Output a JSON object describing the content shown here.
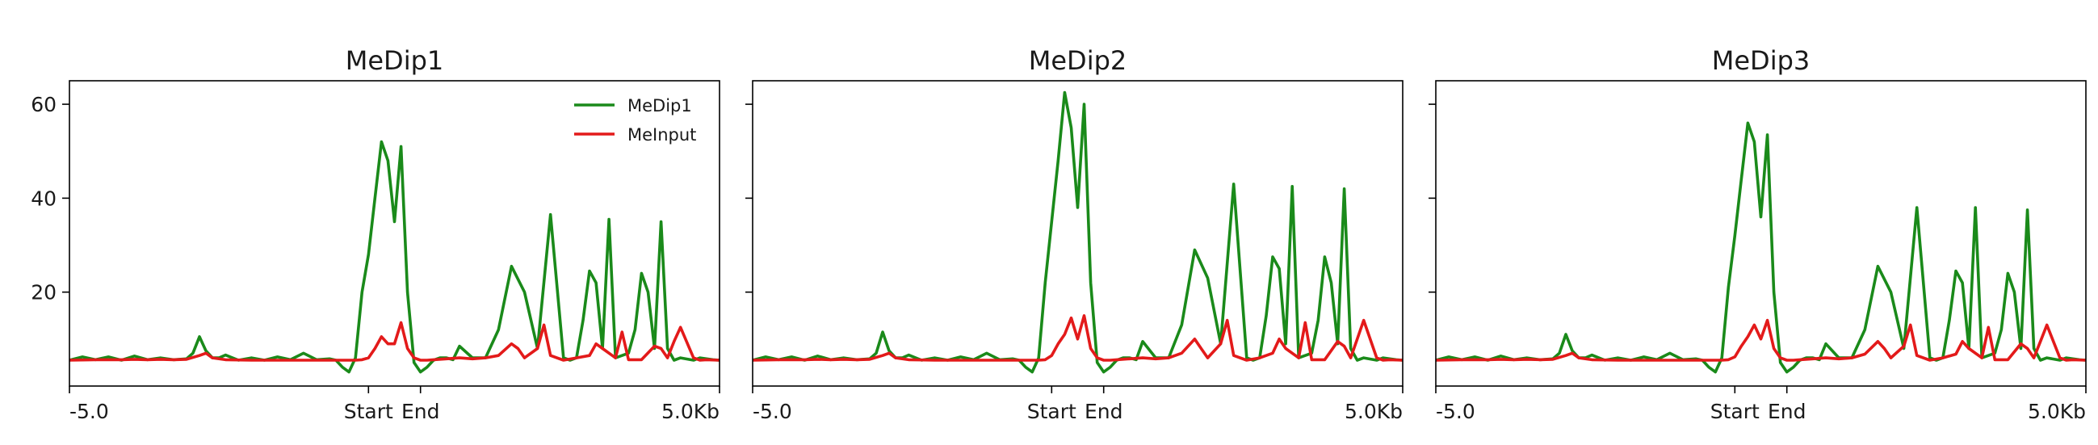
{
  "chart_data": [
    {
      "type": "line",
      "title": "MeDip1",
      "xlim": [
        0,
        100
      ],
      "ylim": [
        0,
        65
      ],
      "x_ticks": [
        {
          "x": 0,
          "label": "-5.0"
        },
        {
          "x": 46,
          "label": "Start"
        },
        {
          "x": 54,
          "label": "End"
        },
        {
          "x": 100,
          "label": "5.0Kb"
        }
      ],
      "y_ticks": [
        {
          "y": 20,
          "label": "20"
        },
        {
          "y": 40,
          "label": "40"
        },
        {
          "y": 60,
          "label": "60"
        }
      ],
      "show_y_tick_labels": true,
      "legend": {
        "position": "top-right",
        "entries": [
          "MeDip1",
          "MeInput"
        ]
      },
      "series": [
        {
          "name": "MeDip1",
          "color": "#1a8a1a",
          "x": [
            0,
            2,
            4,
            6,
            8,
            10,
            12,
            14,
            16,
            18,
            19,
            20,
            21,
            22,
            23,
            24,
            26,
            28,
            30,
            32,
            34,
            36,
            38,
            40,
            41,
            42,
            43,
            44,
            45,
            46,
            47,
            48,
            49,
            50,
            51,
            52,
            53,
            54,
            55,
            56,
            57,
            58,
            59,
            60,
            62,
            64,
            66,
            68,
            70,
            72,
            74,
            76,
            77,
            78,
            79,
            80,
            81,
            82,
            83,
            84,
            86,
            87,
            88,
            89,
            90,
            91,
            92,
            93,
            94,
            96,
            97,
            98,
            99,
            100
          ],
          "y": [
            5.5,
            6.2,
            5.6,
            6.2,
            5.5,
            6.4,
            5.6,
            6.0,
            5.6,
            5.8,
            7.0,
            10.5,
            7.5,
            6.0,
            6.0,
            6.6,
            5.5,
            6.0,
            5.5,
            6.2,
            5.6,
            7.0,
            5.6,
            5.8,
            5.5,
            4.0,
            3.0,
            6.0,
            20.0,
            28.0,
            40.0,
            52.0,
            48.0,
            35.0,
            51.0,
            20.0,
            5.0,
            3.0,
            4.0,
            5.5,
            6.0,
            6.0,
            5.6,
            8.5,
            6.0,
            6.0,
            12.0,
            25.5,
            20.0,
            8.0,
            36.5,
            6.0,
            5.5,
            6.0,
            14.0,
            24.5,
            22.0,
            8.0,
            35.5,
            6.0,
            7.0,
            12.0,
            24.0,
            20.0,
            8.0,
            35.0,
            8.0,
            5.5,
            6.0,
            5.5,
            6.0,
            5.8,
            5.6,
            5.5
          ]
        },
        {
          "name": "MeInput",
          "color": "#e31a1a",
          "x": [
            0,
            4,
            8,
            10,
            12,
            14,
            16,
            18,
            20,
            21,
            22,
            24,
            28,
            32,
            36,
            40,
            42,
            44,
            45,
            46,
            47,
            48,
            49,
            50,
            51,
            52,
            53,
            54,
            55,
            56,
            58,
            60,
            62,
            64,
            66,
            68,
            69,
            70,
            72,
            73,
            74,
            76,
            78,
            80,
            81,
            82,
            84,
            85,
            86,
            88,
            90,
            91,
            92,
            93,
            94,
            96,
            97,
            98,
            100
          ],
          "y": [
            5.5,
            5.6,
            5.6,
            5.7,
            5.6,
            5.7,
            5.6,
            5.7,
            6.5,
            7.0,
            6.0,
            5.6,
            5.5,
            5.5,
            5.5,
            5.5,
            5.5,
            5.5,
            5.6,
            6.0,
            8.0,
            10.5,
            9.0,
            9.0,
            13.5,
            8.0,
            6.0,
            5.5,
            5.5,
            5.6,
            5.8,
            6.0,
            5.8,
            6.0,
            6.5,
            9.0,
            8.0,
            6.0,
            8.0,
            13.0,
            6.5,
            5.5,
            6.0,
            6.5,
            9.0,
            8.0,
            6.0,
            11.5,
            5.6,
            5.6,
            8.5,
            8.0,
            6.0,
            9.5,
            12.5,
            6.0,
            5.5,
            5.6,
            5.5
          ]
        }
      ]
    },
    {
      "type": "line",
      "title": "MeDip2",
      "xlim": [
        0,
        100
      ],
      "ylim": [
        0,
        65
      ],
      "x_ticks": [
        {
          "x": 0,
          "label": "-5.0"
        },
        {
          "x": 46,
          "label": "Start"
        },
        {
          "x": 54,
          "label": "End"
        },
        {
          "x": 100,
          "label": "5.0Kb"
        }
      ],
      "y_ticks": [
        {
          "y": 20,
          "label": ""
        },
        {
          "y": 40,
          "label": ""
        },
        {
          "y": 60,
          "label": ""
        }
      ],
      "show_y_tick_labels": false,
      "series": [
        {
          "name": "MeDip2",
          "color": "#1a8a1a",
          "x": [
            0,
            2,
            4,
            6,
            8,
            10,
            12,
            14,
            16,
            18,
            19,
            20,
            21,
            22,
            23,
            24,
            26,
            28,
            30,
            32,
            34,
            36,
            38,
            40,
            41,
            42,
            43,
            44,
            45,
            46,
            47,
            48,
            49,
            50,
            51,
            52,
            53,
            54,
            55,
            56,
            57,
            58,
            59,
            60,
            62,
            64,
            66,
            68,
            70,
            72,
            74,
            76,
            77,
            78,
            79,
            80,
            81,
            82,
            83,
            84,
            86,
            87,
            88,
            89,
            90,
            91,
            92,
            93,
            94,
            96,
            97,
            98,
            99,
            100
          ],
          "y": [
            5.5,
            6.2,
            5.6,
            6.2,
            5.5,
            6.4,
            5.6,
            6.0,
            5.6,
            5.8,
            7.0,
            11.5,
            7.5,
            6.0,
            6.0,
            6.6,
            5.5,
            6.0,
            5.5,
            6.2,
            5.6,
            7.0,
            5.6,
            5.8,
            5.5,
            4.0,
            3.0,
            6.0,
            22.0,
            35.0,
            48.0,
            62.5,
            55.0,
            38.0,
            60.0,
            22.0,
            5.0,
            3.0,
            4.0,
            5.5,
            6.0,
            6.0,
            5.6,
            9.5,
            6.0,
            6.0,
            13.0,
            29.0,
            23.0,
            9.0,
            43.0,
            6.0,
            5.5,
            6.0,
            15.0,
            27.5,
            25.0,
            9.0,
            42.5,
            6.0,
            7.0,
            14.0,
            27.5,
            22.0,
            9.0,
            42.0,
            8.0,
            5.5,
            6.0,
            5.5,
            6.0,
            5.8,
            5.6,
            5.5
          ]
        },
        {
          "name": "MeInput",
          "color": "#e31a1a",
          "x": [
            0,
            4,
            8,
            10,
            12,
            14,
            16,
            18,
            20,
            21,
            22,
            24,
            28,
            32,
            36,
            40,
            42,
            44,
            45,
            46,
            47,
            48,
            49,
            50,
            51,
            52,
            53,
            54,
            55,
            56,
            58,
            60,
            62,
            64,
            66,
            68,
            69,
            70,
            72,
            73,
            74,
            76,
            78,
            80,
            81,
            82,
            84,
            85,
            86,
            88,
            90,
            91,
            92,
            93,
            94,
            96,
            97,
            98,
            100
          ],
          "y": [
            5.5,
            5.6,
            5.6,
            5.7,
            5.6,
            5.7,
            5.6,
            5.7,
            6.5,
            7.0,
            6.0,
            5.6,
            5.5,
            5.5,
            5.5,
            5.5,
            5.5,
            5.5,
            5.6,
            6.5,
            9.0,
            11.0,
            14.5,
            10.0,
            15.0,
            8.0,
            6.0,
            5.5,
            5.5,
            5.6,
            5.8,
            6.0,
            5.8,
            6.0,
            7.0,
            10.0,
            8.0,
            6.0,
            9.0,
            14.0,
            6.5,
            5.5,
            6.0,
            7.0,
            10.0,
            8.0,
            6.0,
            13.5,
            5.6,
            5.6,
            9.5,
            8.5,
            6.0,
            10.0,
            14.0,
            6.0,
            5.5,
            5.6,
            5.5
          ]
        }
      ]
    },
    {
      "type": "line",
      "title": "MeDip3",
      "xlim": [
        0,
        100
      ],
      "ylim": [
        0,
        65
      ],
      "x_ticks": [
        {
          "x": 0,
          "label": "-5.0"
        },
        {
          "x": 46,
          "label": "Start"
        },
        {
          "x": 54,
          "label": "End"
        },
        {
          "x": 100,
          "label": "5.0Kb"
        }
      ],
      "y_ticks": [
        {
          "y": 20,
          "label": ""
        },
        {
          "y": 40,
          "label": ""
        },
        {
          "y": 60,
          "label": ""
        }
      ],
      "show_y_tick_labels": false,
      "series": [
        {
          "name": "MeDip3",
          "color": "#1a8a1a",
          "x": [
            0,
            2,
            4,
            6,
            8,
            10,
            12,
            14,
            16,
            18,
            19,
            20,
            21,
            22,
            23,
            24,
            26,
            28,
            30,
            32,
            34,
            36,
            38,
            40,
            41,
            42,
            43,
            44,
            45,
            46,
            47,
            48,
            49,
            50,
            51,
            52,
            53,
            54,
            55,
            56,
            57,
            58,
            59,
            60,
            62,
            64,
            66,
            68,
            70,
            72,
            74,
            76,
            77,
            78,
            79,
            80,
            81,
            82,
            83,
            84,
            86,
            87,
            88,
            89,
            90,
            91,
            92,
            93,
            94,
            96,
            97,
            98,
            99,
            100
          ],
          "y": [
            5.5,
            6.2,
            5.6,
            6.2,
            5.5,
            6.4,
            5.6,
            6.0,
            5.6,
            5.8,
            7.0,
            11.0,
            7.5,
            6.0,
            6.0,
            6.6,
            5.5,
            6.0,
            5.5,
            6.2,
            5.6,
            7.0,
            5.6,
            5.8,
            5.5,
            4.0,
            3.0,
            6.0,
            21.0,
            32.0,
            44.0,
            56.0,
            52.0,
            36.0,
            53.5,
            20.0,
            5.0,
            3.0,
            4.0,
            5.5,
            6.0,
            6.0,
            5.6,
            9.0,
            6.0,
            6.0,
            12.0,
            25.5,
            20.0,
            8.0,
            38.0,
            6.0,
            5.5,
            6.0,
            14.0,
            24.5,
            22.0,
            8.0,
            38.0,
            6.0,
            7.0,
            12.0,
            24.0,
            20.0,
            8.0,
            37.5,
            8.0,
            5.5,
            6.0,
            5.5,
            6.0,
            5.8,
            5.6,
            5.5
          ]
        },
        {
          "name": "MeInput",
          "color": "#e31a1a",
          "x": [
            0,
            4,
            8,
            10,
            12,
            14,
            16,
            18,
            20,
            21,
            22,
            24,
            28,
            32,
            36,
            40,
            42,
            44,
            45,
            46,
            47,
            48,
            49,
            50,
            51,
            52,
            53,
            54,
            55,
            56,
            58,
            60,
            62,
            64,
            66,
            68,
            69,
            70,
            72,
            73,
            74,
            76,
            78,
            80,
            81,
            82,
            84,
            85,
            86,
            88,
            90,
            91,
            92,
            93,
            94,
            96,
            97,
            98,
            100
          ],
          "y": [
            5.5,
            5.6,
            5.6,
            5.7,
            5.6,
            5.7,
            5.6,
            5.7,
            6.5,
            7.0,
            6.0,
            5.6,
            5.5,
            5.5,
            5.5,
            5.5,
            5.5,
            5.5,
            5.6,
            6.2,
            8.5,
            10.5,
            13.0,
            10.0,
            14.0,
            8.0,
            6.0,
            5.5,
            5.5,
            5.6,
            5.8,
            6.0,
            5.8,
            6.0,
            6.8,
            9.5,
            8.0,
            6.0,
            8.5,
            13.0,
            6.5,
            5.5,
            6.0,
            6.8,
            9.5,
            8.0,
            6.0,
            12.5,
            5.6,
            5.6,
            9.0,
            8.0,
            6.0,
            9.5,
            13.0,
            6.0,
            5.5,
            5.6,
            5.5
          ]
        }
      ]
    }
  ]
}
